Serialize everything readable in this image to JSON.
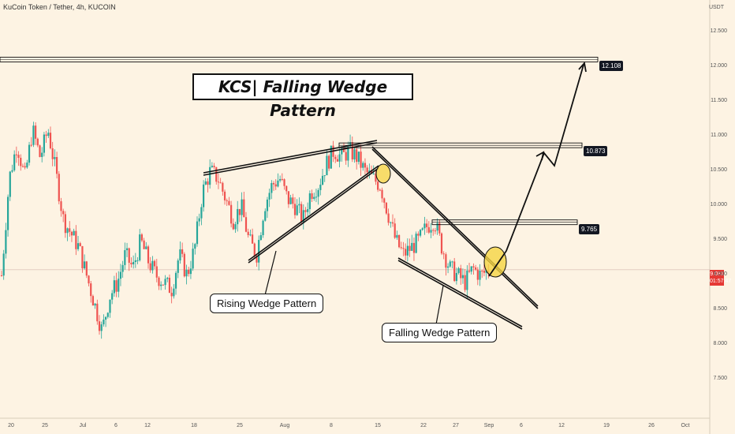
{
  "header": {
    "symbol": "KuCoin Token / Tether, 4h, KUCOIN"
  },
  "annotations": {
    "title": "KCS| Falling Wedge Pattern",
    "rising_label": "Rising Wedge Pattern",
    "falling_label": "Falling Wedge Pattern"
  },
  "price_tag": {
    "value": "9.081",
    "countdown": "01:57:47"
  },
  "chart_data": {
    "type": "candlestick",
    "symbol": "KCSUSDT",
    "timeframe": "4h",
    "y_unit": "USDT",
    "ylim": [
      7.0,
      13.0
    ],
    "y_ticks": [
      "12.500",
      "12.000",
      "11.500",
      "11.000",
      "10.500",
      "10.000",
      "9.500",
      "9.000",
      "8.500",
      "8.000",
      "7.500"
    ],
    "x_ticks": [
      "20",
      "25",
      "Jul",
      "6",
      "12",
      "18",
      "25",
      "Aug",
      "8",
      "15",
      "22",
      "27",
      "Sep",
      "6",
      "12",
      "19",
      "26",
      "Oct"
    ],
    "current_price": 9.081,
    "levels": [
      {
        "label": "12.108",
        "value": 12.108
      },
      {
        "label": "10.873",
        "value": 10.873
      },
      {
        "label": "9.765",
        "value": 9.765
      }
    ],
    "price_path": [
      9.0,
      10.4,
      10.9,
      10.4,
      11.1,
      10.7,
      11.1,
      10.5,
      9.8,
      9.6,
      9.4,
      9.0,
      8.6,
      8.2,
      8.7,
      8.9,
      9.3,
      9.1,
      9.5,
      9.2,
      9.0,
      8.9,
      8.8,
      9.3,
      9.0,
      9.4,
      10.2,
      10.5,
      10.4,
      10.1,
      9.8,
      10.0,
      9.5,
      9.3,
      10.0,
      10.3,
      10.4,
      10.1,
      10.0,
      9.8,
      10.2,
      10.3,
      10.6,
      10.8,
      10.7,
      10.8,
      10.7,
      10.5,
      10.4,
      10.3,
      9.9,
      9.5,
      9.3,
      9.4,
      9.5,
      9.7,
      9.8,
      9.4,
      9.1,
      9.0,
      8.9,
      9.1,
      9.0,
      9.08
    ]
  }
}
